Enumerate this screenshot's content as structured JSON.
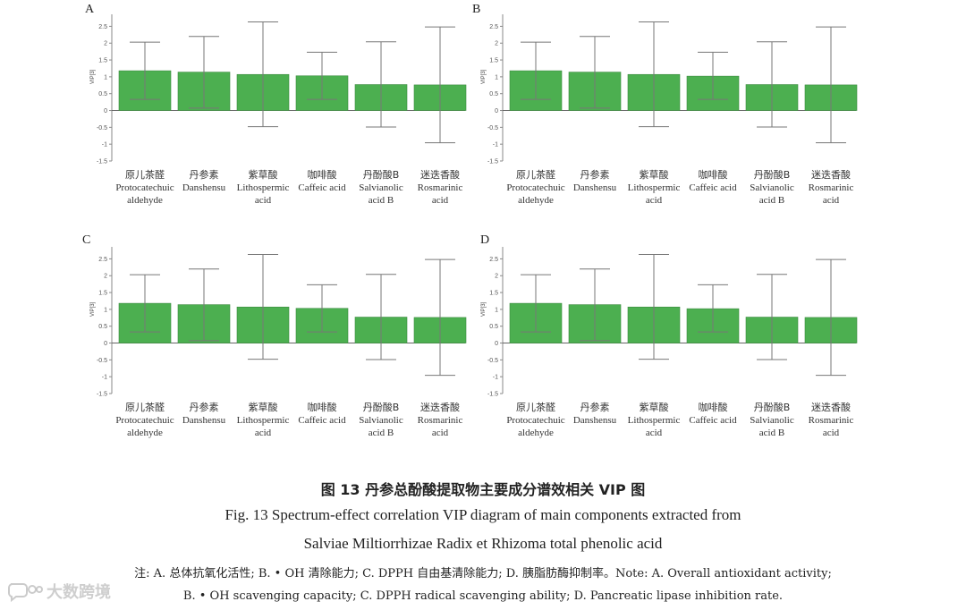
{
  "chart_data": [
    {
      "panel": "A",
      "type": "bar",
      "ylabel": "VIP[3]",
      "ylim": [
        -1.5,
        2.75
      ],
      "yticks": [
        "-1.5",
        "-1",
        "-0.5",
        "0",
        "0.5",
        "1",
        "1.5",
        "2",
        "2.5"
      ],
      "bar_color": "#4caf50",
      "categories": [
        {
          "cn": "原儿茶醛",
          "en": [
            "Protocatechuic",
            "aldehyde"
          ]
        },
        {
          "cn": "丹参素",
          "en": [
            "Danshensu"
          ]
        },
        {
          "cn": "紫草酸",
          "en": [
            "Lithospermic",
            "acid"
          ]
        },
        {
          "cn": "咖啡酸",
          "en": [
            "Caffeic acid"
          ]
        },
        {
          "cn": "丹酚酸B",
          "en": [
            "Salvianolic",
            "acid B"
          ]
        },
        {
          "cn": "迷迭香酸",
          "en": [
            "Rosmarinic",
            "acid"
          ]
        }
      ],
      "values": [
        1.18,
        1.14,
        1.07,
        1.03,
        0.77,
        0.76
      ],
      "error_low": [
        0.33,
        0.07,
        -0.48,
        0.33,
        -0.49,
        -0.96
      ],
      "error_high": [
        2.03,
        2.2,
        2.63,
        1.73,
        2.04,
        2.48
      ],
      "grid": false
    },
    {
      "panel": "B",
      "type": "bar",
      "ylabel": "VIP[3]",
      "ylim": [
        -1.5,
        2.75
      ],
      "yticks": [
        "-1.5",
        "-1",
        "-0.5",
        "0",
        "0.5",
        "1",
        "1.5",
        "2",
        "2.5"
      ],
      "bar_color": "#4caf50",
      "categories": [
        {
          "cn": "原儿茶醛",
          "en": [
            "Protocatechuic",
            "aldehyde"
          ]
        },
        {
          "cn": "丹参素",
          "en": [
            "Danshensu"
          ]
        },
        {
          "cn": "紫草酸",
          "en": [
            "Lithospermic",
            "acid"
          ]
        },
        {
          "cn": "咖啡酸",
          "en": [
            "Caffeic acid"
          ]
        },
        {
          "cn": "丹酚酸B",
          "en": [
            "Salvianolic",
            "acid B"
          ]
        },
        {
          "cn": "迷迭香酸",
          "en": [
            "Rosmarinic",
            "acid"
          ]
        }
      ],
      "values": [
        1.18,
        1.14,
        1.07,
        1.02,
        0.77,
        0.76
      ],
      "error_low": [
        0.33,
        0.07,
        -0.48,
        0.33,
        -0.49,
        -0.96
      ],
      "error_high": [
        2.03,
        2.2,
        2.63,
        1.73,
        2.04,
        2.48
      ],
      "grid": false
    },
    {
      "panel": "C",
      "type": "bar",
      "ylabel": "VIP[3]",
      "ylim": [
        -1.5,
        2.75
      ],
      "yticks": [
        "-1.5",
        "-1",
        "-0.5",
        "0",
        "0.5",
        "1",
        "1.5",
        "2",
        "2.5"
      ],
      "bar_color": "#4caf50",
      "categories": [
        {
          "cn": "原儿茶醛",
          "en": [
            "Protocatechuic",
            "aldehyde"
          ]
        },
        {
          "cn": "丹参素",
          "en": [
            "Danshensu"
          ]
        },
        {
          "cn": "紫草酸",
          "en": [
            "Lithospermic",
            "acid"
          ]
        },
        {
          "cn": "咖啡酸",
          "en": [
            "Caffeic acid"
          ]
        },
        {
          "cn": "丹酚酸B",
          "en": [
            "Salvianolic",
            "acid B"
          ]
        },
        {
          "cn": "迷迭香酸",
          "en": [
            "Rosmarinic",
            "acid"
          ]
        }
      ],
      "values": [
        1.18,
        1.14,
        1.07,
        1.03,
        0.77,
        0.76
      ],
      "error_low": [
        0.33,
        0.07,
        -0.48,
        0.33,
        -0.49,
        -0.96
      ],
      "error_high": [
        2.03,
        2.2,
        2.63,
        1.73,
        2.04,
        2.48
      ],
      "grid": false
    },
    {
      "panel": "D",
      "type": "bar",
      "ylabel": "VIP[3]",
      "ylim": [
        -1.5,
        2.75
      ],
      "yticks": [
        "-1.5",
        "-1",
        "-0.5",
        "0",
        "0.5",
        "1",
        "1.5",
        "2",
        "2.5"
      ],
      "bar_color": "#4caf50",
      "categories": [
        {
          "cn": "原儿茶醛",
          "en": [
            "Protocatechuic",
            "aldehyde"
          ]
        },
        {
          "cn": "丹参素",
          "en": [
            "Danshensu"
          ]
        },
        {
          "cn": "紫草酸",
          "en": [
            "Lithospermic",
            "acid"
          ]
        },
        {
          "cn": "咖啡酸",
          "en": [
            "Caffeic acid"
          ]
        },
        {
          "cn": "丹酚酸B",
          "en": [
            "Salvianolic",
            "acid B"
          ]
        },
        {
          "cn": "迷迭香酸",
          "en": [
            "Rosmarinic",
            "acid"
          ]
        }
      ],
      "values": [
        1.18,
        1.14,
        1.07,
        1.02,
        0.77,
        0.76
      ],
      "error_low": [
        0.33,
        0.07,
        -0.48,
        0.33,
        -0.49,
        -0.96
      ],
      "error_high": [
        2.03,
        2.2,
        2.63,
        1.73,
        2.04,
        2.48
      ],
      "grid": false
    }
  ],
  "caption": {
    "cn": "图 13    丹参总酚酸提取物主要成分谱效相关 VIP 图",
    "en_line1": "Fig. 13    Spectrum-effect correlation VIP diagram of main components extracted from",
    "en_line2": "Salviae Miltiorrhizae Radix et Rhizoma total phenolic acid"
  },
  "note": {
    "line1": "注: A. 总体抗氧化活性; B. • OH 清除能力; C. DPPH 自由基清除能力; D. 胰脂肪酶抑制率。Note: A. Overall antioxidant activity;",
    "line2": "B. • OH scavenging capacity; C. DPPH radical scavenging ability; D. Pancreatic lipase inhibition rate."
  },
  "watermark": {
    "text": "大数跨境",
    "icon": "speech-bubble-logo-icon"
  }
}
